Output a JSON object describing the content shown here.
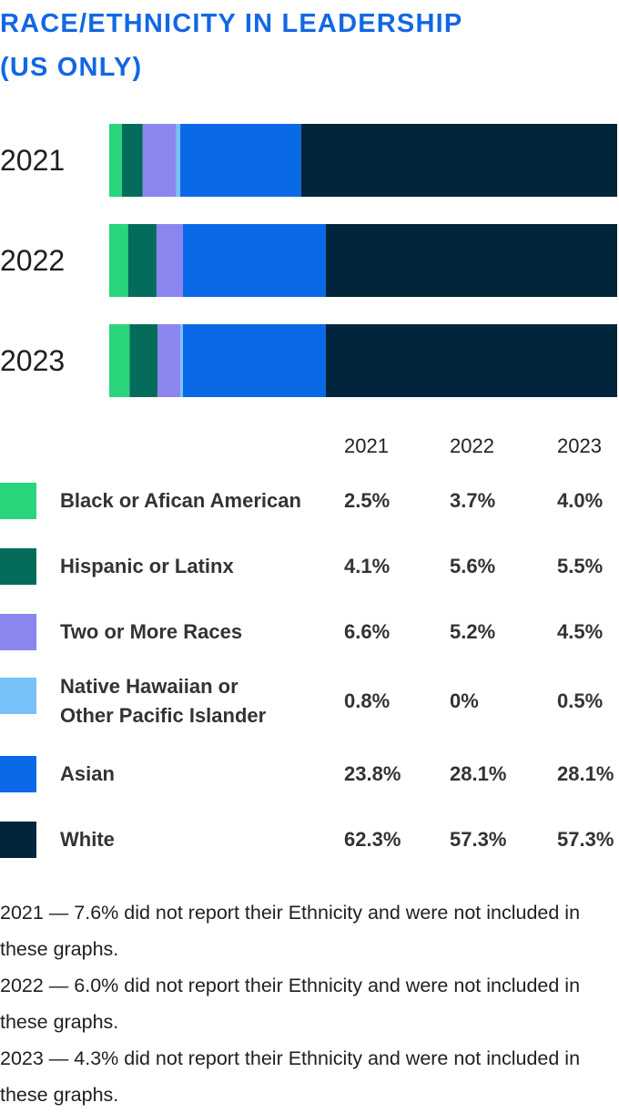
{
  "title_line1": "RACE/ETHNICITY IN LEADERSHIP",
  "title_line2": "(US ONLY)",
  "chart_data": {
    "type": "bar",
    "orientation": "horizontal-stacked",
    "title": "RACE/ETHNICITY IN LEADERSHIP (US ONLY)",
    "categories": [
      "2021",
      "2022",
      "2023"
    ],
    "series": [
      {
        "name": "Black or Afican American",
        "color": "#28d57a",
        "values": [
          2.5,
          3.7,
          4.0
        ]
      },
      {
        "name": "Hispanic or Latinx",
        "color": "#056c5c",
        "values": [
          4.1,
          5.6,
          5.5
        ]
      },
      {
        "name": "Two or More Races",
        "color": "#8b86ef",
        "values": [
          6.6,
          5.2,
          4.5
        ]
      },
      {
        "name": "Native Hawaiian or Other Pacific Islander",
        "color": "#77c1fb",
        "values": [
          0.8,
          0,
          0.5
        ]
      },
      {
        "name": "Asian",
        "color": "#0a69e6",
        "values": [
          23.8,
          28.1,
          28.1
        ]
      },
      {
        "name": "White",
        "color": "#02253b",
        "values": [
          62.3,
          57.3,
          57.3
        ]
      }
    ],
    "xlim": [
      0,
      100
    ],
    "grid": false
  },
  "legend": {
    "year_headers": [
      "2021",
      "2022",
      "2023"
    ],
    "rows": [
      {
        "name": "Black or Afican American",
        "values": [
          "2.5%",
          "3.7%",
          "4.0%"
        ]
      },
      {
        "name": "Hispanic or Latinx",
        "values": [
          "4.1%",
          "5.6%",
          "5.5%"
        ]
      },
      {
        "name": "Two or More Races",
        "values": [
          "6.6%",
          "5.2%",
          "4.5%"
        ]
      },
      {
        "name_line1": "Native Hawaiian or",
        "name_line2": "Other Pacific Islander",
        "values": [
          "0.8%",
          "0%",
          "0.5%"
        ]
      },
      {
        "name": "Asian",
        "values": [
          "23.8%",
          "28.1%",
          "28.1%"
        ]
      },
      {
        "name": "White",
        "values": [
          "62.3%",
          "57.3%",
          "57.3%"
        ]
      }
    ]
  },
  "notes": [
    "2021 — 7.6% did not report their Ethnicity and were not included in these graphs.",
    "2022 — 6.0% did not report their Ethnicity and were not included in these graphs.",
    "2023 — 4.3% did not report their Ethnicity and were not included in these graphs."
  ]
}
